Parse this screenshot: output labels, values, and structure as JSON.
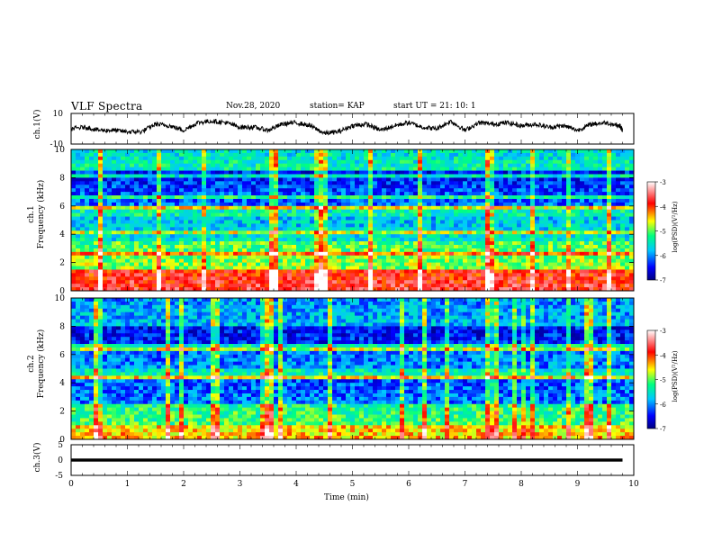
{
  "header": {
    "title": "VLF Spectra",
    "date": "Nov.28, 2020",
    "station": "station= KAP",
    "start": "start UT = 21: 10: 1"
  },
  "axes": {
    "ch1_wave_label": "ch.1(V)",
    "ch1_spec_label_top": "ch.1",
    "ch1_spec_label_bottom": "Frequency (kHz)",
    "ch2_spec_label_top": "ch.2",
    "ch2_spec_label_bottom": "Frequency (kHz)",
    "ch3_wave_label": "ch.3(V)",
    "x_label": "Time (min)",
    "colorbar_label": "log(PSD)(V²/Hz)"
  },
  "colors": {
    "accent_low": "#000080",
    "accent_high": "#ffffff"
  },
  "chart_data": [
    {
      "type": "line",
      "title": "",
      "ylabel": "ch.1(V)",
      "ylim": [
        -10,
        10
      ],
      "yticks": [
        "10",
        "-10"
      ],
      "xlim": [
        0,
        10
      ],
      "x": [
        0,
        0.25,
        0.5,
        0.75,
        1.0,
        1.25,
        1.5,
        1.75,
        2.0,
        2.25,
        2.5,
        2.75,
        3.0,
        3.25,
        3.5,
        3.75,
        4.0,
        4.25,
        4.5,
        4.75,
        5.0,
        5.25,
        5.5,
        5.75,
        6.0,
        6.25,
        6.5,
        6.75,
        7.0,
        7.25,
        7.5,
        7.75,
        8.0,
        8.25,
        8.5,
        8.75,
        9.0,
        9.25,
        9.5,
        9.75,
        9.8
      ],
      "y": [
        0,
        1,
        -1,
        -1,
        -2,
        -2,
        3,
        2,
        -1,
        4,
        5,
        4,
        1,
        1,
        -1,
        3,
        4,
        2,
        -3,
        -2,
        2,
        3,
        -1,
        2,
        4,
        1,
        0,
        5,
        -1,
        4,
        3,
        4,
        2,
        3,
        1,
        2,
        -1,
        3,
        4,
        2,
        -1
      ]
    },
    {
      "type": "heatmap",
      "ylabel": "Frequency (kHz)",
      "ylim": [
        0,
        10
      ],
      "yticks": [
        "0",
        "2",
        "4",
        "6",
        "8",
        "10"
      ],
      "xlim": [
        0,
        10
      ],
      "colorbar": {
        "label": "log(PSD)(V²/Hz)",
        "range": [
          -7,
          -3
        ],
        "ticks": [
          "-3",
          "-4",
          "-5",
          "-6",
          "-7"
        ]
      }
    },
    {
      "type": "heatmap",
      "ylabel": "Frequency (kHz)",
      "ylim": [
        0,
        10
      ],
      "yticks": [
        "0",
        "2",
        "4",
        "6",
        "8",
        "10"
      ],
      "xlim": [
        0,
        10
      ],
      "colorbar": {
        "label": "log(PSD)(V²/Hz)",
        "range": [
          -7,
          -3
        ],
        "ticks": [
          "-3",
          "-4",
          "-5",
          "-6",
          "-7"
        ]
      }
    },
    {
      "type": "line",
      "ylabel": "ch.3(V)",
      "ylim": [
        -5,
        5
      ],
      "yticks": [
        "5",
        "0",
        "-5"
      ],
      "xlim": [
        0,
        10
      ],
      "xlabel": "Time (min)",
      "xticks": [
        "0",
        "1",
        "2",
        "3",
        "4",
        "5",
        "6",
        "7",
        "8",
        "9",
        "10"
      ]
    }
  ]
}
